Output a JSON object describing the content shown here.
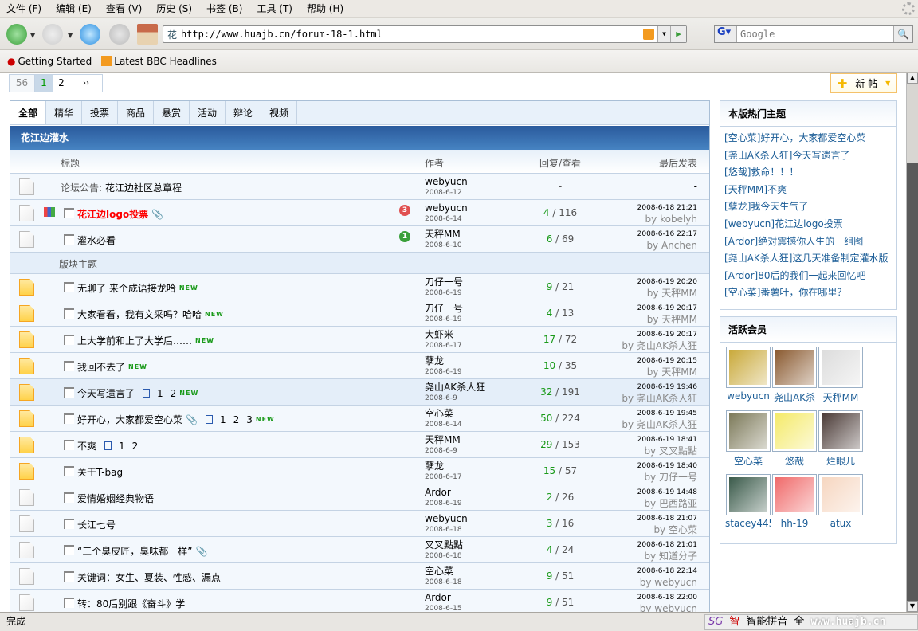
{
  "browser": {
    "menu": [
      "文件 (F)",
      "编辑 (E)",
      "查看 (V)",
      "历史 (S)",
      "书签 (B)",
      "工具 (T)",
      "帮助 (H)"
    ],
    "url": "http://www.huajb.cn/forum-18-1.html",
    "favicon": "花",
    "search_placeholder": "Google",
    "bookmarks": [
      "Getting Started",
      "Latest BBC Headlines"
    ],
    "status": "完成",
    "ime": {
      "label": "智能拼音",
      "mode": "全",
      "watermark": "www.huajb.cn"
    }
  },
  "pager": {
    "total": "56",
    "pages": [
      "1",
      "2"
    ],
    "current": "1",
    "next": "››"
  },
  "new_post_label": "新 帖",
  "tabs": [
    "全部",
    "精华",
    "投票",
    "商品",
    "悬赏",
    "活动",
    "辩论",
    "视频"
  ],
  "forum_name": "花江边灌水",
  "columns": {
    "title": "标题",
    "author": "作者",
    "replies": "回复/查看",
    "last": "最后发表"
  },
  "section_label": "版块主题",
  "pinned": [
    {
      "prefix": "论坛公告:",
      "title": "花江边社区总章程",
      "author": "webyucn",
      "date": "2008-6-12",
      "replies": "-",
      "last": "-"
    },
    {
      "title": "花江边logo投票",
      "style": "red-bold",
      "poll": true,
      "attach": true,
      "badge": "3",
      "author": "webyucn",
      "date": "2008-6-14",
      "replies": "4",
      "views": "116",
      "last_date": "2008-6-18 21:21",
      "last_by": "kobelyh"
    },
    {
      "title": "灌水必看",
      "badge": "1",
      "author": "天秤MM",
      "date": "2008-6-10",
      "replies": "6",
      "views": "69",
      "last_date": "2008-6-16 22:17",
      "last_by": "Anchen"
    }
  ],
  "threads": [
    {
      "title": "无聊了 来个成语接龙哈",
      "new": true,
      "hot": true,
      "author": "刀仔一号",
      "date": "2008-6-19",
      "replies": "9",
      "views": "21",
      "last_date": "2008-6-19 20:20",
      "last_by": "天秤MM"
    },
    {
      "title": "大家看看，我有文采吗？哈哈",
      "new": true,
      "hot": true,
      "author": "刀仔一号",
      "date": "2008-6-19",
      "replies": "4",
      "views": "13",
      "last_date": "2008-6-19 20:17",
      "last_by": "天秤MM"
    },
    {
      "title": "上大学前和上了大学后……",
      "new": true,
      "hot": true,
      "author": "大虾米",
      "date": "2008-6-17",
      "replies": "17",
      "views": "72",
      "last_date": "2008-6-19 20:17",
      "last_by": "尧山AK杀人狂"
    },
    {
      "title": "我回不去了",
      "new": true,
      "hot": true,
      "author": "孽龙",
      "date": "2008-6-19",
      "replies": "10",
      "views": "35",
      "last_date": "2008-6-19 20:15",
      "last_by": "天秤MM"
    },
    {
      "title": "今天写遗言了",
      "new": true,
      "hot": true,
      "pages": [
        "1",
        "2"
      ],
      "author": "尧山AK杀人狂",
      "date": "2008-6-9",
      "replies": "32",
      "views": "191",
      "last_date": "2008-6-19 19:46",
      "last_by": "尧山AK杀人狂",
      "highlight": true
    },
    {
      "title": "好开心，大家都爱空心菜",
      "new": true,
      "hot": true,
      "attach": true,
      "pages": [
        "1",
        "2",
        "3"
      ],
      "author": "空心菜",
      "date": "2008-6-14",
      "replies": "50",
      "views": "224",
      "last_date": "2008-6-19 19:45",
      "last_by": "尧山AK杀人狂"
    },
    {
      "title": "不爽",
      "hot": true,
      "pages": [
        "1",
        "2"
      ],
      "author": "天秤MM",
      "date": "2008-6-9",
      "replies": "29",
      "views": "153",
      "last_date": "2008-6-19 18:41",
      "last_by": "叉叉點點"
    },
    {
      "title": "关于T-bag",
      "hot": true,
      "author": "孽龙",
      "date": "2008-6-17",
      "replies": "15",
      "views": "57",
      "last_date": "2008-6-19 18:40",
      "last_by": "刀仔一号"
    },
    {
      "title": "爱情婚姻经典物语",
      "author": "Ardor",
      "date": "2008-6-19",
      "replies": "2",
      "views": "26",
      "last_date": "2008-6-19 14:48",
      "last_by": "巴西路亚"
    },
    {
      "title": "长江七号",
      "author": "webyucn",
      "date": "2008-6-18",
      "replies": "3",
      "views": "16",
      "last_date": "2008-6-18 21:07",
      "last_by": "空心菜"
    },
    {
      "title": "“三个臭皮匠，臭味都一样”",
      "attach": true,
      "author": "叉叉點點",
      "date": "2008-6-18",
      "replies": "4",
      "views": "24",
      "last_date": "2008-6-18 21:01",
      "last_by": "知道分子"
    },
    {
      "title": "关键词：女生、夏装、性感、漏点",
      "author": "空心菜",
      "date": "2008-6-18",
      "replies": "9",
      "views": "51",
      "last_date": "2008-6-18 22:14",
      "last_by": "webyucn"
    },
    {
      "title": "转：80后别跟《奋斗》学",
      "author": "Ardor",
      "date": "2008-6-15",
      "replies": "9",
      "views": "51",
      "last_date": "2008-6-18 22:00",
      "last_by": "webyucn"
    }
  ],
  "hot_topics": {
    "title": "本版热门主题",
    "items": [
      {
        "user": "空心菜",
        "title": "好开心，大家都爱空心菜"
      },
      {
        "user": "尧山AK杀人狂",
        "title": "今天写遗言了"
      },
      {
        "user": "悠哉",
        "title": "救命！！！"
      },
      {
        "user": "天秤MM",
        "title": "不爽"
      },
      {
        "user": "孽龙",
        "title": "我今天生气了"
      },
      {
        "user": "webyucn",
        "title": "花江边logo投票"
      },
      {
        "user": "Ardor",
        "title": "绝对震撼你人生的一组图"
      },
      {
        "user": "尧山AK杀人狂",
        "title": "这几天准备制定灌水版"
      },
      {
        "user": "Ardor",
        "title": "80后的我们一起来回忆吧"
      },
      {
        "user": "空心菜",
        "title": "番薯叶，你在哪里？"
      }
    ]
  },
  "active_members": {
    "title": "活跃会员",
    "items": [
      {
        "name": "webyucn",
        "color": "#c9a93a"
      },
      {
        "name": "尧山AK杀",
        "color": "#8a5a30"
      },
      {
        "name": "天秤MM",
        "color": "#dcdcdc"
      },
      {
        "name": "空心菜",
        "color": "#7d7a5a"
      },
      {
        "name": "悠哉",
        "color": "#f4ea6a"
      },
      {
        "name": "烂眼儿",
        "color": "#4a3a36"
      },
      {
        "name": "stacey445",
        "color": "#3a5a4a"
      },
      {
        "name": "hh-19",
        "color": "#f06a6a"
      },
      {
        "name": "atux",
        "color": "#f6d6c0"
      }
    ]
  },
  "colors": {
    "forum_bar": "#2a5a9c",
    "link": "#1a5c96",
    "replies": "#1a9a1a",
    "title_red": "#ff0000"
  }
}
